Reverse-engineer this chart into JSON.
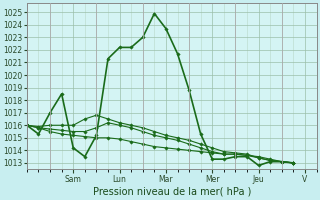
{
  "xlabel": "Pression niveau de la mer( hPa )",
  "bg_color": "#c8eef0",
  "plot_bg_color": "#d4f4f4",
  "grid_color_major": "#9bbfaa",
  "grid_color_minor": "#b8d8c8",
  "line_color": "#1a6b1a",
  "ylim": [
    1012.5,
    1025.7
  ],
  "yticks": [
    1013,
    1014,
    1015,
    1016,
    1017,
    1018,
    1019,
    1020,
    1021,
    1022,
    1023,
    1024,
    1025
  ],
  "day_labels": [
    "Sam",
    "Lun",
    "Mar",
    "Mer",
    "Jeu",
    "V"
  ],
  "vline_positions": [
    1.0,
    3.0,
    5.0,
    7.0,
    9.0,
    11.0
  ],
  "day_tick_positions": [
    2.0,
    4.0,
    6.0,
    8.0,
    10.0,
    12.0
  ],
  "xlim": [
    0.0,
    12.5
  ],
  "series": [
    {
      "x": [
        0.0,
        0.5,
        1.0,
        1.5,
        2.0,
        2.5,
        3.0,
        3.5,
        4.0,
        4.5,
        5.0,
        5.5,
        6.0,
        6.5,
        7.0,
        7.5,
        8.0,
        8.5,
        9.0,
        9.5,
        10.0,
        10.5,
        11.0,
        11.5
      ],
      "y": [
        1016.0,
        1015.3,
        1017.0,
        1018.5,
        1014.2,
        1013.5,
        1015.2,
        1021.3,
        1022.2,
        1022.2,
        1023.0,
        1024.9,
        1023.7,
        1021.7,
        1018.8,
        1015.3,
        1013.3,
        1013.3,
        1013.5,
        1013.5,
        1012.8,
        1013.1,
        1013.1,
        1013.0
      ],
      "lw": 1.2
    },
    {
      "x": [
        0.0,
        0.5,
        1.0,
        1.5,
        2.0,
        2.5,
        3.0,
        3.5,
        4.0,
        4.5,
        5.0,
        5.5,
        6.0,
        6.5,
        7.0,
        7.5,
        8.0,
        8.5,
        9.0,
        9.5,
        10.0,
        10.5,
        11.0,
        11.5
      ],
      "y": [
        1016.0,
        1015.8,
        1015.5,
        1015.3,
        1015.2,
        1015.1,
        1015.0,
        1015.0,
        1014.9,
        1014.7,
        1014.5,
        1014.3,
        1014.2,
        1014.1,
        1014.0,
        1013.9,
        1013.8,
        1013.7,
        1013.7,
        1013.6,
        1013.5,
        1013.3,
        1013.1,
        1013.0
      ],
      "lw": 0.8
    },
    {
      "x": [
        0.0,
        0.5,
        1.0,
        1.5,
        2.0,
        2.5,
        3.0,
        3.5,
        4.0,
        4.5,
        5.0,
        5.5,
        6.0,
        6.5,
        7.0,
        7.5,
        8.0,
        8.5,
        9.0,
        9.5,
        10.0,
        10.5,
        11.0,
        11.5
      ],
      "y": [
        1016.0,
        1015.8,
        1015.7,
        1015.6,
        1015.5,
        1015.5,
        1015.8,
        1016.2,
        1016.0,
        1015.8,
        1015.5,
        1015.2,
        1015.0,
        1014.8,
        1014.5,
        1014.2,
        1013.9,
        1013.7,
        1013.7,
        1013.6,
        1013.4,
        1013.2,
        1013.1,
        1013.0
      ],
      "lw": 0.8
    },
    {
      "x": [
        0.0,
        0.5,
        1.0,
        1.5,
        2.0,
        2.5,
        3.0,
        3.5,
        4.0,
        4.5,
        5.0,
        5.5,
        6.0,
        6.5,
        7.0,
        7.5,
        8.0,
        8.5,
        9.0,
        9.5,
        10.0,
        10.5,
        11.0,
        11.5
      ],
      "y": [
        1016.0,
        1015.9,
        1016.0,
        1016.0,
        1016.0,
        1016.5,
        1016.8,
        1016.5,
        1016.2,
        1016.0,
        1015.8,
        1015.5,
        1015.2,
        1015.0,
        1014.8,
        1014.5,
        1014.2,
        1013.9,
        1013.8,
        1013.7,
        1013.4,
        1013.2,
        1013.1,
        1013.0
      ],
      "lw": 0.8
    }
  ],
  "tick_fontsize": 5.5,
  "label_fontsize": 7.0
}
